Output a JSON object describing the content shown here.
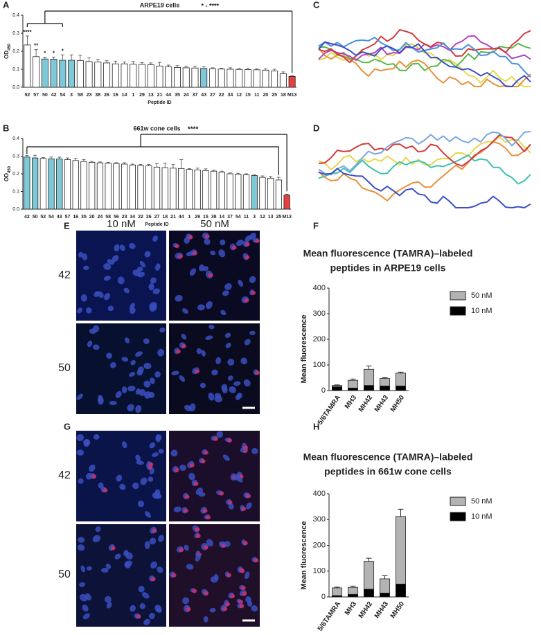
{
  "panel_labels": [
    "A",
    "B",
    "C",
    "D",
    "E",
    "F",
    "G",
    "H"
  ],
  "microscopy": {
    "columns": [
      "10 nM",
      "50 nM"
    ],
    "rows_E": [
      "42",
      "50"
    ],
    "rows_G": [
      "42",
      "50"
    ]
  },
  "chart_data": [
    {
      "type": "bar",
      "title": "ARPE19 cells",
      "x_label": "Peptide ID",
      "y_label": "OD",
      "y_label_subscript": "450",
      "categories": [
        "52",
        "57",
        "50",
        "42",
        "54",
        "3",
        "58",
        "23",
        "38",
        "26",
        "16",
        "14",
        "1",
        "29",
        "13",
        "21",
        "44",
        "35",
        "24",
        "37",
        "43",
        "27",
        "22",
        "34",
        "12",
        "15",
        "11",
        "20",
        "25",
        "18",
        "M13"
      ],
      "values": [
        0.235,
        0.17,
        0.157,
        0.156,
        0.15,
        0.15,
        0.148,
        0.143,
        0.14,
        0.135,
        0.13,
        0.13,
        0.128,
        0.127,
        0.125,
        0.118,
        0.113,
        0.11,
        0.108,
        0.107,
        0.105,
        0.103,
        0.101,
        0.1,
        0.099,
        0.098,
        0.097,
        0.095,
        0.09,
        0.075,
        0.06
      ],
      "errors": [
        0.05,
        0.04,
        0.01,
        0.012,
        0.03,
        0.03,
        0.03,
        0.02,
        0.015,
        0.012,
        0.015,
        0.01,
        0.015,
        0.01,
        0.01,
        0.02,
        0.01,
        0.01,
        0.008,
        0.01,
        0.01,
        0.005,
        0.005,
        0.008,
        0.005,
        0.005,
        0.005,
        0.008,
        0.01,
        0.01,
        0.005
      ],
      "colors": [
        "#ffffff",
        "#ffffff",
        "#7ec8d8",
        "#7ec8d8",
        "#7ec8d8",
        "#7ec8d8",
        "#ffffff",
        "#ffffff",
        "#ffffff",
        "#ffffff",
        "#ffffff",
        "#ffffff",
        "#ffffff",
        "#ffffff",
        "#ffffff",
        "#ffffff",
        "#ffffff",
        "#ffffff",
        "#ffffff",
        "#ffffff",
        "#7ec8d8",
        "#ffffff",
        "#ffffff",
        "#ffffff",
        "#ffffff",
        "#ffffff",
        "#ffffff",
        "#ffffff",
        "#ffffff",
        "#ffffff",
        "#e8413c"
      ],
      "annotations": [
        "****",
        "**",
        "*",
        "*",
        "*",
        null,
        null,
        null,
        null,
        null,
        null,
        null,
        null,
        null,
        null,
        null,
        null,
        null,
        null,
        null,
        null,
        null,
        null,
        null,
        null,
        null,
        null,
        null,
        null,
        null,
        null
      ],
      "bracket_label": "* - ****",
      "ylim": [
        0,
        0.4
      ],
      "yticks": [
        {
          "value": 0,
          "label": "0.0"
        },
        0.1,
        0.2,
        0.3,
        0.4
      ]
    },
    {
      "type": "bar",
      "title": "661w cone cells",
      "x_label": "Peptide ID",
      "y_label": "OD",
      "y_label_subscript": "450",
      "categories": [
        "42",
        "50",
        "52",
        "54",
        "43",
        "57",
        "16",
        "35",
        "20",
        "24",
        "58",
        "56",
        "23",
        "34",
        "22",
        "26",
        "27",
        "18",
        "21",
        "44",
        "1",
        "29",
        "15",
        "38",
        "14",
        "37",
        "54",
        "11",
        "3",
        "12",
        "13",
        "25",
        "M13"
      ],
      "values": [
        0.295,
        0.29,
        0.287,
        0.285,
        0.284,
        0.28,
        0.275,
        0.27,
        0.265,
        0.262,
        0.26,
        0.258,
        0.255,
        0.25,
        0.248,
        0.245,
        0.238,
        0.235,
        0.232,
        0.23,
        0.225,
        0.222,
        0.218,
        0.215,
        0.21,
        0.2,
        0.198,
        0.195,
        0.19,
        0.18,
        0.175,
        0.165,
        0.08
      ],
      "errors": [
        0.008,
        0.015,
        0.005,
        0.01,
        0.01,
        0.01,
        0.012,
        0.01,
        0.005,
        0.005,
        0.005,
        0.005,
        0.008,
        0.005,
        0.005,
        0.008,
        0.02,
        0.025,
        0.02,
        0.05,
        0.005,
        0.01,
        0.01,
        0.005,
        0.005,
        0.005,
        0.005,
        0.005,
        0.005,
        0.008,
        0.01,
        0.015,
        0.005
      ],
      "colors": [
        "#7ec8d8",
        "#7ec8d8",
        "#ffffff",
        "#7ec8d8",
        "#7ec8d8",
        "#ffffff",
        "#ffffff",
        "#ffffff",
        "#ffffff",
        "#ffffff",
        "#ffffff",
        "#ffffff",
        "#ffffff",
        "#ffffff",
        "#ffffff",
        "#ffffff",
        "#ffffff",
        "#ffffff",
        "#ffffff",
        "#ffffff",
        "#ffffff",
        "#ffffff",
        "#ffffff",
        "#ffffff",
        "#ffffff",
        "#ffffff",
        "#ffffff",
        "#ffffff",
        "#7ec8d8",
        "#ffffff",
        "#ffffff",
        "#ffffff",
        "#e8413c"
      ],
      "bracket_label": "****",
      "ylim": [
        0,
        0.4
      ],
      "yticks": [
        {
          "value": 0,
          "label": "0.0"
        },
        0.1,
        0.2,
        0.3,
        0.4
      ]
    },
    {
      "type": "stacked_bar",
      "title": [
        "Mean fluorescence (TAMRA)–labeled",
        "peptides in ARPE19 cells"
      ],
      "y_label": "Mean fluorescence",
      "categories": [
        "5/6TAMRA",
        "MH3",
        "MH42",
        "MH43",
        "MH50"
      ],
      "series": [
        {
          "name": "10 nM",
          "color": "#000000",
          "values": [
            15,
            10,
            20,
            18,
            18
          ],
          "errors": [
            2,
            2,
            3,
            3,
            3
          ]
        },
        {
          "name": "50 nM",
          "color": "#b3b3b3",
          "values": [
            5,
            30,
            63,
            29,
            50
          ],
          "errors": [
            2,
            5,
            13,
            3,
            4
          ]
        }
      ],
      "ylim": [
        0,
        400
      ],
      "yticks": [
        0,
        100,
        200,
        300,
        400
      ]
    },
    {
      "type": "stacked_bar",
      "title": [
        "Mean fluorescence (TAMRA)–labeled",
        "peptides in 661w cone cells"
      ],
      "y_label": "Mean fluorescence",
      "categories": [
        "5/6TAMRA",
        "MH3",
        "MH42",
        "MH43",
        "MH50"
      ],
      "series": [
        {
          "name": "10 nM",
          "color": "#000000",
          "values": [
            5,
            10,
            30,
            15,
            50
          ],
          "errors": [
            2,
            2,
            4,
            3,
            5
          ]
        },
        {
          "name": "50 nM",
          "color": "#b3b3b3",
          "values": [
            30,
            27,
            108,
            55,
            262
          ],
          "errors": [
            3,
            5,
            12,
            12,
            28
          ]
        }
      ],
      "ylim": [
        0,
        400
      ],
      "yticks": [
        0,
        100,
        200,
        300,
        400
      ]
    }
  ]
}
